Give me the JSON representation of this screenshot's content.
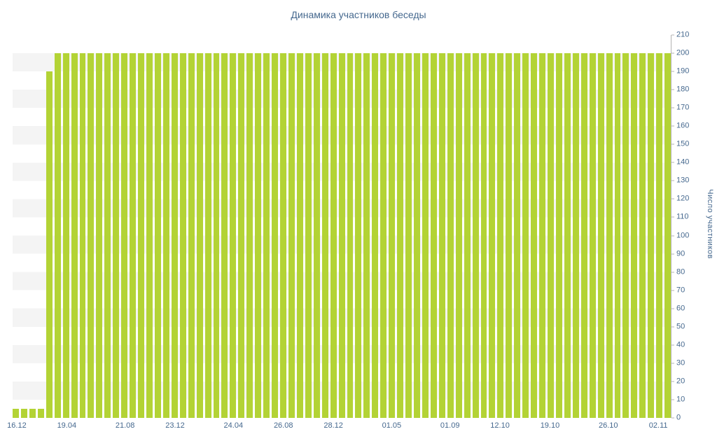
{
  "chart_data": {
    "type": "bar",
    "title": "Динамика участников беседы",
    "xlabel": "",
    "ylabel": "Число участников",
    "ylim": [
      0,
      210
    ],
    "y_tick_step": 10,
    "grid": "horizontal-stripes",
    "legend": "none",
    "values": [
      5,
      5,
      5,
      5,
      190,
      200,
      200,
      200,
      200,
      200,
      200,
      200,
      200,
      200,
      200,
      200,
      200,
      200,
      200,
      200,
      200,
      200,
      200,
      200,
      200,
      200,
      200,
      200,
      200,
      200,
      200,
      200,
      200,
      200,
      200,
      200,
      200,
      200,
      200,
      200,
      200,
      200,
      200,
      200,
      200,
      200,
      200,
      200,
      200,
      200,
      200,
      200,
      200,
      200,
      200,
      200,
      200,
      200,
      200,
      200,
      200,
      200,
      200,
      200,
      200,
      200,
      200,
      200,
      200,
      200,
      200,
      200,
      200,
      200,
      200,
      200,
      200,
      200,
      200
    ],
    "x_tick_labels": [
      "16.12",
      "19.04",
      "21.08",
      "23.12",
      "24.04",
      "26.08",
      "28.12",
      "01.05",
      "01.09",
      "12.10",
      "19.10",
      "26.10",
      "02.11"
    ],
    "x_tick_indices": [
      0,
      6,
      13,
      19,
      26,
      32,
      38,
      45,
      52,
      58,
      64,
      71,
      77
    ],
    "colors": {
      "bar": "#b3d335",
      "text": "#45688e",
      "axis": "#b3b3b3",
      "stripe": "#f4f4f4",
      "background": "#ffffff"
    }
  }
}
